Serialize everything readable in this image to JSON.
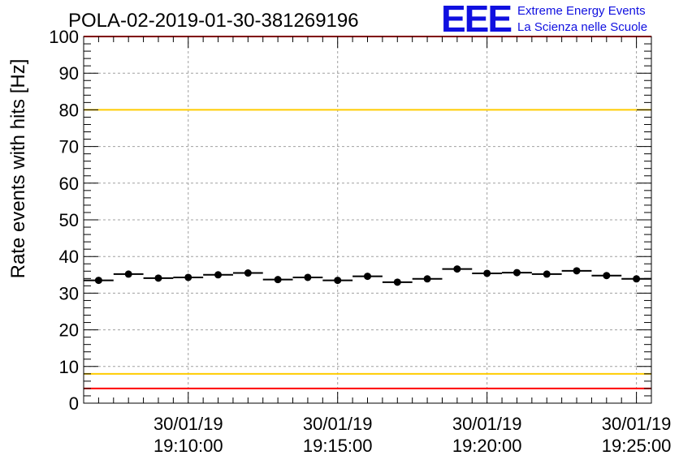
{
  "chart_data": {
    "type": "scatter",
    "title": "POLA-02-2019-01-30-381269196",
    "ylabel": "Rate events with hits [Hz]",
    "xlabel": "",
    "ylim": [
      0,
      100
    ],
    "yticks": [
      0,
      10,
      20,
      30,
      40,
      50,
      60,
      70,
      80,
      90,
      100
    ],
    "xlim": [
      "30/01/19 19:06:30",
      "30/01/19 19:25:30"
    ],
    "xticks": [
      {
        "date": "30/01/19",
        "time": "19:10:00"
      },
      {
        "date": "30/01/19",
        "time": "19:15:00"
      },
      {
        "date": "30/01/19",
        "time": "19:20:00"
      },
      {
        "date": "30/01/19",
        "time": "19:25:00"
      }
    ],
    "grid": true,
    "bin_width_seconds": 60,
    "points": [
      {
        "x": "19:07:00",
        "y": 33.5
      },
      {
        "x": "19:08:00",
        "y": 35.2
      },
      {
        "x": "19:09:00",
        "y": 34.1
      },
      {
        "x": "19:10:00",
        "y": 34.3
      },
      {
        "x": "19:11:00",
        "y": 35.0
      },
      {
        "x": "19:12:00",
        "y": 35.5
      },
      {
        "x": "19:13:00",
        "y": 33.7
      },
      {
        "x": "19:14:00",
        "y": 34.3
      },
      {
        "x": "19:15:00",
        "y": 33.5
      },
      {
        "x": "19:16:00",
        "y": 34.6
      },
      {
        "x": "19:17:00",
        "y": 33.0
      },
      {
        "x": "19:18:00",
        "y": 33.9
      },
      {
        "x": "19:19:00",
        "y": 36.6
      },
      {
        "x": "19:20:00",
        "y": 35.4
      },
      {
        "x": "19:21:00",
        "y": 35.6
      },
      {
        "x": "19:22:00",
        "y": 35.2
      },
      {
        "x": "19:23:00",
        "y": 36.1
      },
      {
        "x": "19:24:00",
        "y": 34.8
      },
      {
        "x": "19:25:00",
        "y": 33.9
      }
    ],
    "reference_lines": [
      {
        "y": 100,
        "color": "#ff0000"
      },
      {
        "y": 80,
        "color": "#ffcc00"
      },
      {
        "y": 8,
        "color": "#ffcc00"
      },
      {
        "y": 4,
        "color": "#ff0000"
      }
    ]
  },
  "logo": {
    "mark": "EEE",
    "line1": "Extreme Energy Events",
    "line2": "La Scienza nelle Scuole",
    "color": "#1010e0"
  }
}
